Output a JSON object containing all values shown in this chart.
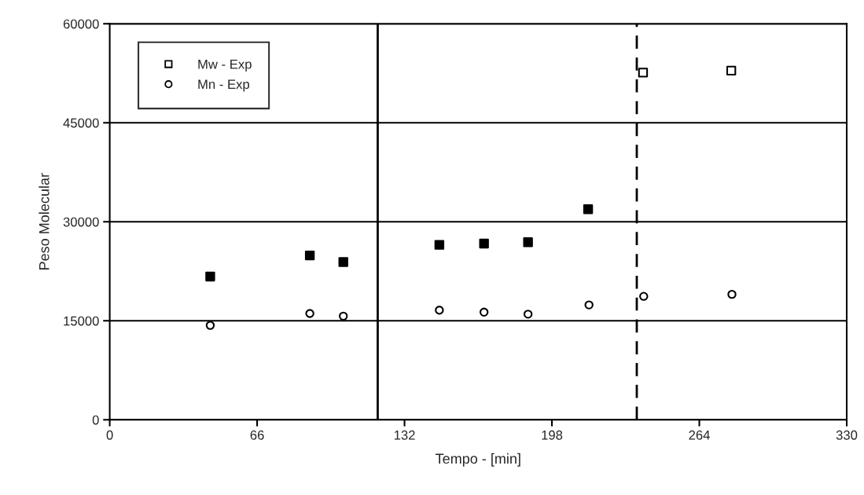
{
  "chart_data": {
    "type": "scatter",
    "xlabel": "Tempo - [min]",
    "ylabel": "Peso Molecular",
    "xlim": [
      0,
      330
    ],
    "xticks": [
      0,
      66,
      132,
      198,
      264,
      330
    ],
    "ylim": [
      0,
      60000
    ],
    "yticks": [
      0,
      15000,
      30000,
      45000,
      60000
    ],
    "grid": "y",
    "legend": "top left",
    "series": [
      {
        "color": "#000000",
        "marker": "square",
        "x": [
          45,
          89.6,
          104.6,
          147.6,
          167.6,
          187.3,
          214.2
        ],
        "values": [
          21700,
          24900,
          23900,
          26500,
          26700,
          26900,
          31900
        ]
      },
      {
        "name": "Mw - Exp",
        "color": "#000000",
        "marker": "square",
        "x": [
          238.8,
          278.3
        ],
        "values": [
          52600,
          52900
        ]
      },
      {
        "name": "Mn - Exp",
        "color": "#000000",
        "marker": "circle",
        "x": [
          45,
          89.6,
          104.6,
          147.6,
          167.6,
          187.3,
          214.6,
          239.1,
          278.6
        ],
        "values": [
          14300,
          16100,
          15700,
          16600,
          16300,
          16000,
          17400,
          18700,
          19000
        ]
      }
    ],
    "ref_lines": [
      {
        "axis": "x",
        "value": 120,
        "color": "#000000",
        "line_style": "solid"
      },
      {
        "axis": "x",
        "value": 236,
        "color": "#000000",
        "line_style": "dashed"
      }
    ]
  }
}
